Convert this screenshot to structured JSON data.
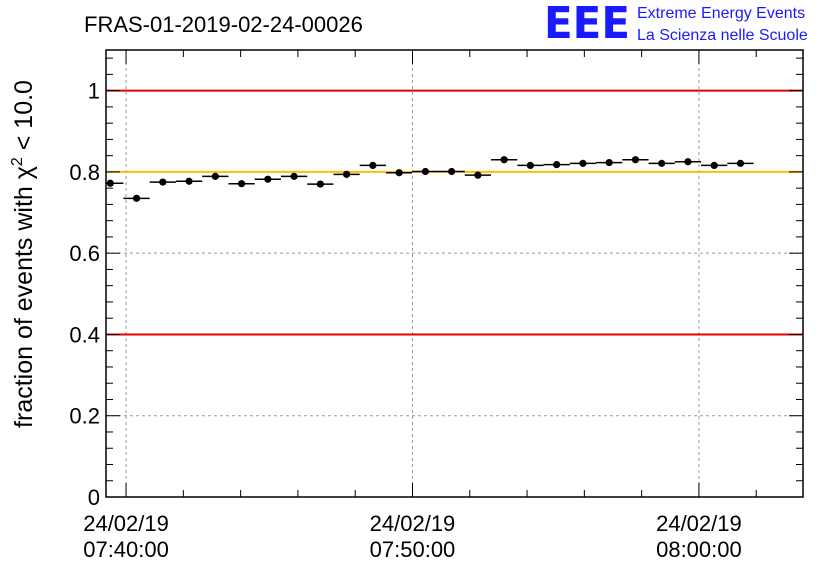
{
  "header": {
    "run_title": "FRAS-01-2019-02-24-00026",
    "logo_mark": "EEE",
    "logo_line1": "Extreme Energy Events",
    "logo_line2": "La Scienza nelle Scuole"
  },
  "colors": {
    "threshold_red": "#e00000",
    "threshold_orange": "#ffbf00",
    "grid": "#9a9a9a",
    "marker": "#000000",
    "logo_blue": "#1a1aff"
  },
  "chart_data": {
    "type": "scatter",
    "title": "FRAS-01-2019-02-24-00026",
    "ylabel_main": "fraction of events with ",
    "ylabel_symbol": "χ",
    "ylabel_exp": "2",
    "ylabel_tail": " < 10.0",
    "xlabel": "",
    "xlim": [
      "2019-02-24 07:39:18",
      "2019-02-24 08:03:38"
    ],
    "ylim": [
      0,
      1.1
    ],
    "yticks": [
      0,
      0.2,
      0.4,
      0.6,
      0.8,
      1
    ],
    "ytick_labels": [
      "0",
      "0.2",
      "0.4",
      "0.6",
      "0.8",
      "1"
    ],
    "xticks": [
      {
        "time": "2019-02-24 07:40:00",
        "date_label": "24/02/19",
        "time_label": "07:40:00"
      },
      {
        "time": "2019-02-24 07:50:00",
        "date_label": "24/02/19",
        "time_label": "07:50:00"
      },
      {
        "time": "2019-02-24 08:00:00",
        "date_label": "24/02/19",
        "time_label": "08:00:00"
      }
    ],
    "grid": true,
    "reference_lines": [
      {
        "y": 1.0,
        "color": "#e00000"
      },
      {
        "y": 0.8,
        "color": "#ffbf00"
      },
      {
        "y": 0.4,
        "color": "#e00000"
      }
    ],
    "bin_width_seconds": 55,
    "points": [
      {
        "x": "2019-02-24 07:39:27",
        "y": 0.772
      },
      {
        "x": "2019-02-24 07:40:22",
        "y": 0.735
      },
      {
        "x": "2019-02-24 07:41:17",
        "y": 0.775
      },
      {
        "x": "2019-02-24 07:42:12",
        "y": 0.777
      },
      {
        "x": "2019-02-24 07:43:07",
        "y": 0.789
      },
      {
        "x": "2019-02-24 07:44:02",
        "y": 0.771
      },
      {
        "x": "2019-02-24 07:44:57",
        "y": 0.782
      },
      {
        "x": "2019-02-24 07:45:52",
        "y": 0.789
      },
      {
        "x": "2019-02-24 07:46:47",
        "y": 0.77
      },
      {
        "x": "2019-02-24 07:47:42",
        "y": 0.794
      },
      {
        "x": "2019-02-24 07:48:37",
        "y": 0.816
      },
      {
        "x": "2019-02-24 07:49:32",
        "y": 0.798
      },
      {
        "x": "2019-02-24 07:50:27",
        "y": 0.801
      },
      {
        "x": "2019-02-24 07:51:22",
        "y": 0.801
      },
      {
        "x": "2019-02-24 07:52:17",
        "y": 0.792
      },
      {
        "x": "2019-02-24 07:53:12",
        "y": 0.83
      },
      {
        "x": "2019-02-24 07:54:07",
        "y": 0.816
      },
      {
        "x": "2019-02-24 07:55:02",
        "y": 0.818
      },
      {
        "x": "2019-02-24 07:55:57",
        "y": 0.821
      },
      {
        "x": "2019-02-24 07:56:52",
        "y": 0.823
      },
      {
        "x": "2019-02-24 07:57:47",
        "y": 0.83
      },
      {
        "x": "2019-02-24 07:58:42",
        "y": 0.821
      },
      {
        "x": "2019-02-24 07:59:37",
        "y": 0.825
      },
      {
        "x": "2019-02-24 08:00:32",
        "y": 0.816
      },
      {
        "x": "2019-02-24 08:01:27",
        "y": 0.821
      }
    ]
  }
}
